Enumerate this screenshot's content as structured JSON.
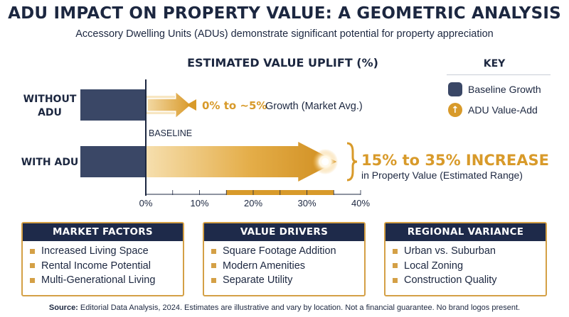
{
  "header": {
    "title": "ADU IMPACT ON PROPERTY VALUE: A GEOMETRIC ANALYSIS",
    "subtitle": "Accessory Dwelling Units (ADUs) demonstrate significant potential for property appreciation"
  },
  "chart_data": {
    "type": "bar",
    "title": "ESTIMATED VALUE UPLIFT (%)",
    "categories": [
      "WITHOUT ADU",
      "WITH ADU"
    ],
    "baseline_label": "BASELINE",
    "x_ticks": [
      "0%",
      "10%",
      "20%",
      "30%",
      "40%"
    ],
    "xlim": [
      0,
      40
    ],
    "series": [
      {
        "name": "Baseline Growth",
        "values": [
          0,
          0
        ],
        "color": "#3a4766"
      },
      {
        "name": "ADU Value-Add",
        "values": [
          5,
          35
        ],
        "color": "#d89a2a"
      }
    ],
    "range_band": [
      15,
      35
    ],
    "annotations": {
      "without_adu": {
        "highlight": "0% to ~5%",
        "rest": " Growth (Market Avg.)"
      },
      "with_adu": {
        "highlight": "15% to 35% INCREASE",
        "rest": "in Property Value (Estimated Range)"
      }
    },
    "legend_position": "right"
  },
  "key": {
    "title": "KEY",
    "items": [
      {
        "label": "Baseline Growth",
        "icon": "baseline-swatch-icon"
      },
      {
        "label": "ADU Value-Add",
        "icon": "up-arrow-circle-icon",
        "glyph": "↑"
      }
    ]
  },
  "panels": [
    {
      "title": "MARKET FACTORS",
      "items": [
        "Increased Living Space",
        "Rental Income Potential",
        "Multi-Generational Living"
      ]
    },
    {
      "title": "VALUE DRIVERS",
      "items": [
        "Square Footage Addition",
        "Modern Amenities",
        "Separate Utility"
      ]
    },
    {
      "title": "REGIONAL VARIANCE",
      "items": [
        "Urban vs. Suburban",
        "Local Zoning",
        "Construction Quality"
      ]
    }
  ],
  "footer": {
    "source_label": "Source:",
    "source_text": " Editorial Data Analysis, 2024. Estimates are illustrative and vary by location. Not a financial guarantee. No brand logos present."
  },
  "colors": {
    "navy": "#1e2a4a",
    "baseline": "#3a4766",
    "gold": "#d89a2a",
    "panel_border": "#d4a046"
  }
}
